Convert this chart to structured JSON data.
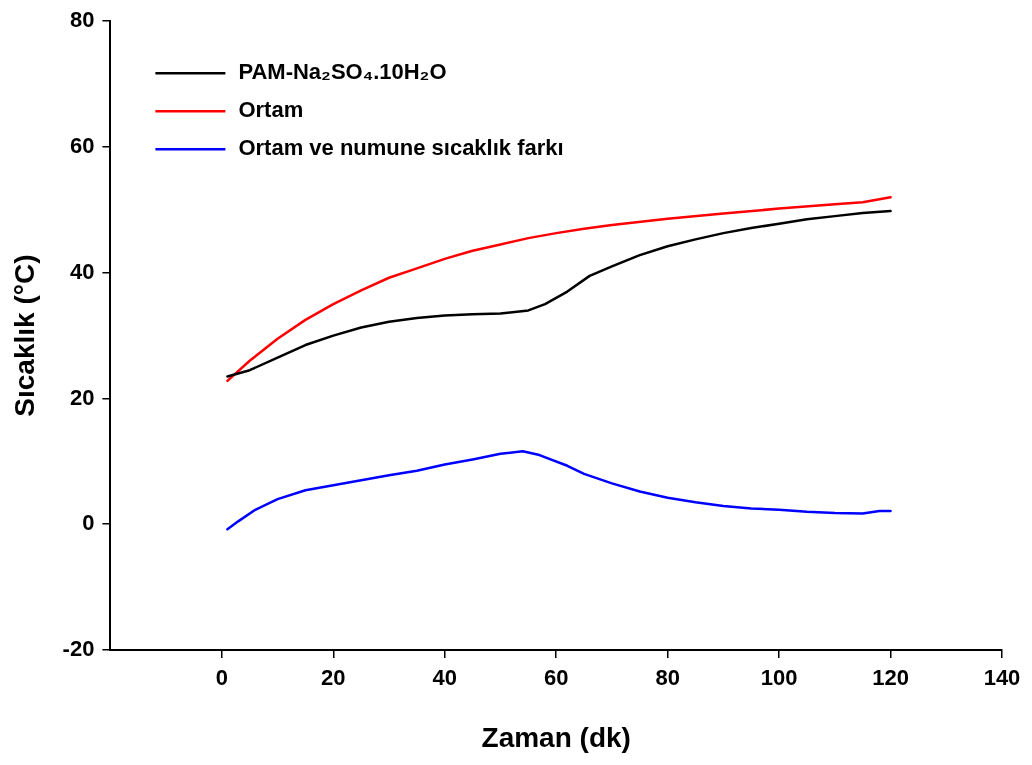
{
  "chart_data": {
    "type": "line",
    "xlabel": "Zaman (dk)",
    "ylabel": "Sıcaklık (°C)",
    "xlim": [
      -20,
      140
    ],
    "xticks": [
      0,
      20,
      40,
      60,
      80,
      100,
      120,
      140
    ],
    "ylim": [
      -20,
      80
    ],
    "yticks": [
      -20,
      0,
      20,
      40,
      60,
      80
    ],
    "grid": false,
    "legend": "top left",
    "marker": "none",
    "line_style": "solid",
    "series": [
      {
        "name": "PAM-Na₂SO₄.10H₂O",
        "color": "#000000",
        "x": [
          1,
          5,
          10,
          15,
          20,
          25,
          30,
          35,
          40,
          45,
          50,
          55,
          58,
          62,
          66,
          70,
          75,
          80,
          85,
          90,
          95,
          100,
          105,
          110,
          115,
          120
        ],
        "values": [
          23.5,
          24.5,
          26.5,
          28.5,
          30,
          31.3,
          32.2,
          32.8,
          33.2,
          33.4,
          33.5,
          34,
          35,
          37,
          39.5,
          41,
          42.8,
          44.2,
          45.3,
          46.3,
          47.1,
          47.8,
          48.5,
          49,
          49.5,
          49.8
        ]
      },
      {
        "name": "Ortam",
        "color": "#ff0000",
        "x": [
          1,
          5,
          10,
          15,
          20,
          25,
          30,
          35,
          40,
          45,
          50,
          55,
          60,
          65,
          70,
          80,
          90,
          100,
          110,
          115,
          120
        ],
        "values": [
          22.8,
          26,
          29.5,
          32.5,
          35,
          37.2,
          39.2,
          40.7,
          42.2,
          43.5,
          44.5,
          45.5,
          46.3,
          47,
          47.6,
          48.6,
          49.4,
          50.2,
          50.9,
          51.2,
          52
        ]
      },
      {
        "name": "Ortam ve numune sıcaklık farkı",
        "color": "#0000ff",
        "x": [
          1,
          3,
          6,
          10,
          15,
          20,
          25,
          30,
          35,
          40,
          45,
          50,
          54,
          57,
          62,
          65,
          70,
          75,
          80,
          85,
          90,
          95,
          100,
          105,
          110,
          115,
          118,
          120
        ],
        "values": [
          -0.8,
          0.5,
          2.3,
          4,
          5.4,
          6.2,
          7,
          7.8,
          8.5,
          9.5,
          10.3,
          11.2,
          11.6,
          11,
          9.3,
          8,
          6.5,
          5.2,
          4.2,
          3.5,
          2.9,
          2.5,
          2.3,
          2,
          1.8,
          1.7,
          2.1,
          2.1
        ]
      }
    ]
  }
}
